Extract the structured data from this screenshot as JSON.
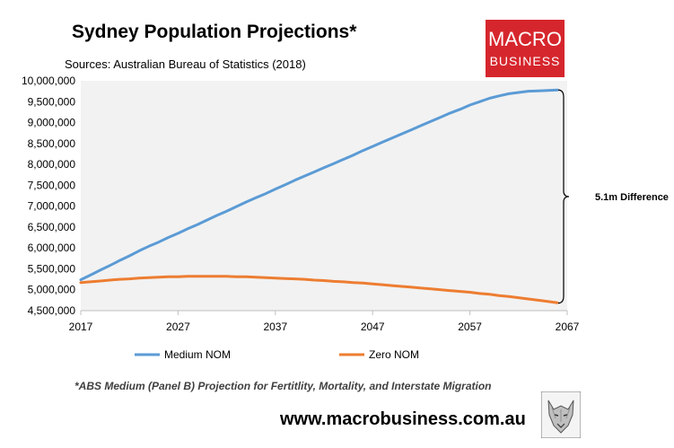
{
  "header": {
    "title": "Sydney Population Projections*",
    "source": "Sources: Australian Bureau of Statistics (2018)"
  },
  "logo": {
    "line1": "MACRO",
    "line2": "BUSINESS",
    "color": "#d6262d"
  },
  "footer": {
    "footnote": "*ABS Medium (Panel B) Projection for Fertitlity, Mortality, and Interstate Migration",
    "website": "www.macrobusiness.com.au"
  },
  "chart_data": {
    "type": "line",
    "title": "Sydney Population Projections*",
    "xlabel": "",
    "ylabel": "",
    "xlim": [
      2017,
      2067
    ],
    "ylim": [
      4500000,
      10000000
    ],
    "x_ticks": [
      2017,
      2027,
      2037,
      2047,
      2057,
      2067
    ],
    "y_ticks": [
      4500000,
      5000000,
      5500000,
      6000000,
      6500000,
      7000000,
      7500000,
      8000000,
      8500000,
      9000000,
      9500000,
      10000000
    ],
    "y_tick_labels": [
      "4,500,000",
      "5,000,000",
      "5,500,000",
      "6,000,000",
      "6,500,000",
      "7,000,000",
      "7,500,000",
      "8,000,000",
      "8,500,000",
      "9,000,000",
      "9,500,000",
      "10,000,000"
    ],
    "x_tick_labels": [
      "2017",
      "2027",
      "2037",
      "2047",
      "2057",
      "2067"
    ],
    "background": "#f2f2f2",
    "legend_position": "bottom",
    "series": [
      {
        "name": "Medium NOM",
        "color": "#5b9bd5",
        "x": [
          2017,
          2018,
          2019,
          2020,
          2021,
          2022,
          2023,
          2024,
          2025,
          2026,
          2027,
          2028,
          2029,
          2030,
          2031,
          2032,
          2033,
          2034,
          2035,
          2036,
          2037,
          2038,
          2039,
          2040,
          2041,
          2042,
          2043,
          2044,
          2045,
          2046,
          2047,
          2048,
          2049,
          2050,
          2051,
          2052,
          2053,
          2054,
          2055,
          2056,
          2057,
          2058,
          2059,
          2060,
          2061,
          2062,
          2063,
          2064,
          2065,
          2066
        ],
        "values": [
          5240000,
          5350000,
          5470000,
          5580000,
          5700000,
          5810000,
          5930000,
          6040000,
          6140000,
          6250000,
          6350000,
          6460000,
          6560000,
          6670000,
          6780000,
          6880000,
          6990000,
          7100000,
          7200000,
          7300000,
          7410000,
          7510000,
          7620000,
          7720000,
          7820000,
          7920000,
          8020000,
          8120000,
          8220000,
          8330000,
          8430000,
          8530000,
          8630000,
          8730000,
          8830000,
          8930000,
          9030000,
          9130000,
          9230000,
          9320000,
          9420000,
          9500000,
          9580000,
          9640000,
          9690000,
          9720000,
          9750000,
          9760000,
          9770000,
          9780000
        ]
      },
      {
        "name": "Zero NOM",
        "color": "#ed7d31",
        "x": [
          2017,
          2018,
          2019,
          2020,
          2021,
          2022,
          2023,
          2024,
          2025,
          2026,
          2027,
          2028,
          2029,
          2030,
          2031,
          2032,
          2033,
          2034,
          2035,
          2036,
          2037,
          2038,
          2039,
          2040,
          2041,
          2042,
          2043,
          2044,
          2045,
          2046,
          2047,
          2048,
          2049,
          2050,
          2051,
          2052,
          2053,
          2054,
          2055,
          2056,
          2057,
          2058,
          2059,
          2060,
          2061,
          2062,
          2063,
          2064,
          2065,
          2066
        ],
        "values": [
          5170000,
          5190000,
          5210000,
          5230000,
          5250000,
          5260000,
          5280000,
          5290000,
          5300000,
          5310000,
          5310000,
          5320000,
          5320000,
          5320000,
          5320000,
          5320000,
          5310000,
          5310000,
          5300000,
          5290000,
          5280000,
          5270000,
          5260000,
          5250000,
          5230000,
          5220000,
          5200000,
          5190000,
          5170000,
          5160000,
          5140000,
          5120000,
          5100000,
          5080000,
          5060000,
          5040000,
          5020000,
          5000000,
          4980000,
          4960000,
          4940000,
          4910000,
          4890000,
          4860000,
          4840000,
          4810000,
          4780000,
          4750000,
          4720000,
          4690000
        ]
      }
    ],
    "annotation": {
      "text": "5.1m Difference",
      "from": 4680000,
      "to": 9780000
    }
  }
}
